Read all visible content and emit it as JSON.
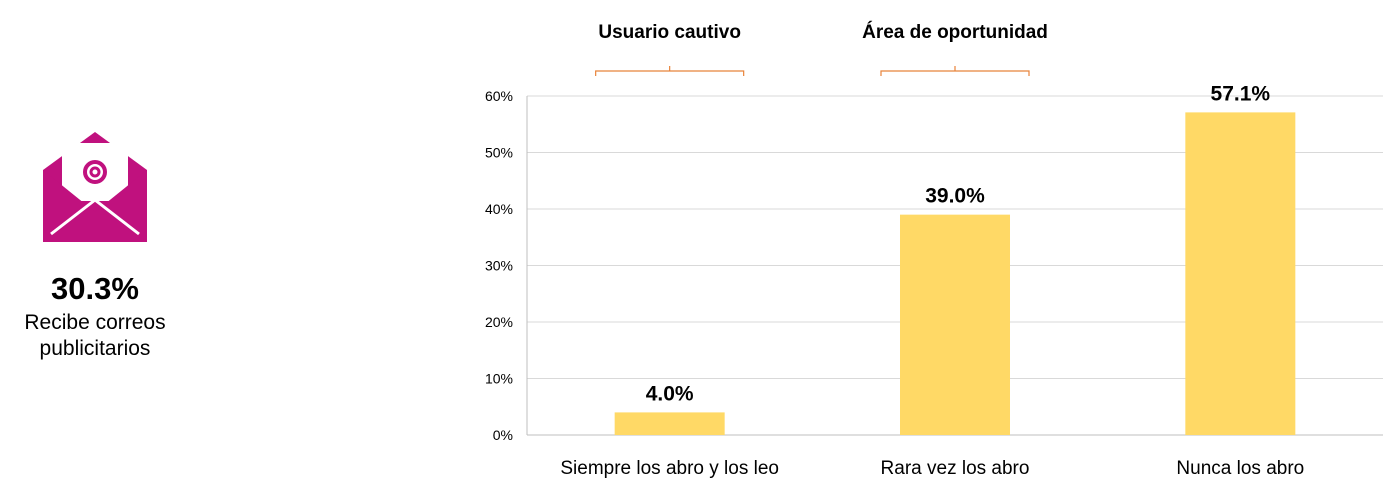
{
  "summary": {
    "icon": "email-envelope-icon",
    "icon_color": "#C0117E",
    "value": "30.3%",
    "label": "Recibe correos publicitarios"
  },
  "chart_data": {
    "type": "bar",
    "categories": [
      "Siempre los abro y los leo",
      "Rara vez los abro",
      "Nunca los abro"
    ],
    "values": [
      4.0,
      39.0,
      57.1
    ],
    "value_labels": [
      "4.0%",
      "39.0%",
      "57.1%"
    ],
    "yticks": [
      "0%",
      "10%",
      "20%",
      "30%",
      "40%",
      "50%",
      "60%"
    ],
    "ylim": [
      0,
      60
    ],
    "grid": true,
    "bar_color": "#FFD966",
    "annotations": [
      {
        "text": "Usuario cautivo",
        "category_index": 0,
        "bracket_color": "#E8833A"
      },
      {
        "text": "Área de oportunidad",
        "category_index": 1,
        "bracket_color": "#E8833A"
      }
    ]
  }
}
